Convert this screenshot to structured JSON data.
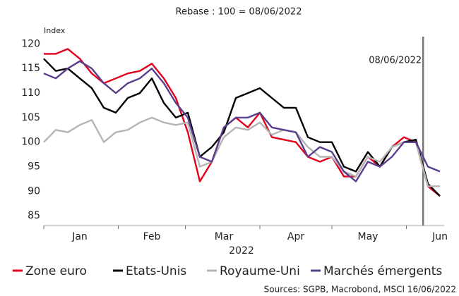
{
  "chart_data": {
    "type": "line",
    "subtitle": "Rebase : 100 = 08/06/2022",
    "y_axis_label": "Index",
    "x_axis_label": "2022",
    "annotation": "08/06/2022",
    "source": "Sources: SGPB, Macrobond, MSCI 16/06/2022",
    "categories": [
      null,
      null,
      null,
      "Jan",
      null,
      null,
      null,
      null,
      null,
      "Feb",
      null,
      null,
      null,
      null,
      null,
      "Mar",
      null,
      null,
      null,
      null,
      null,
      "Apr",
      null,
      null,
      null,
      null,
      null,
      "May",
      null,
      null,
      null,
      null,
      null,
      "Jun"
    ],
    "series": [
      {
        "name": "Zone euro",
        "color": "#e3001b",
        "values": [
          118,
          118,
          119,
          117,
          114,
          112,
          113,
          114,
          114.5,
          116,
          113,
          109,
          102,
          92,
          96,
          103,
          105,
          103,
          106,
          101,
          100.5,
          100,
          97,
          96,
          97,
          93,
          93,
          97,
          95,
          99,
          101,
          100,
          91,
          89
        ]
      },
      {
        "name": "Etats-Unis",
        "color": "#000000",
        "values": [
          117,
          114.5,
          115,
          113,
          111,
          107,
          106,
          109,
          110,
          113,
          108,
          105,
          106,
          97,
          99,
          102,
          109,
          110,
          111,
          109,
          107,
          107,
          101,
          100,
          100,
          95,
          94,
          98,
          95,
          99,
          100,
          100.5,
          91.5,
          89
        ]
      },
      {
        "name": "Royaume-Uni",
        "color": "#b5b5b5",
        "values": [
          100,
          102.5,
          102,
          103.5,
          104.5,
          100,
          102,
          102.5,
          104,
          105,
          104,
          103.5,
          104,
          95,
          96,
          101,
          103,
          102.5,
          104,
          101.5,
          102.5,
          102,
          99,
          97,
          97,
          94,
          93,
          97,
          96,
          99,
          100,
          100,
          91,
          91
        ]
      },
      {
        "name": "Marchés émergents",
        "color": "#5a3e8e",
        "values": [
          114,
          113,
          115,
          116.5,
          115,
          112,
          110,
          112,
          113,
          115,
          112,
          108,
          105,
          97,
          96,
          103,
          105,
          105,
          106,
          103,
          102.5,
          102,
          97,
          99,
          98,
          94,
          92,
          96,
          95,
          97,
          100,
          100,
          95,
          94
        ]
      }
    ],
    "ylim": [
      83,
      121.5
    ],
    "yticks": [
      85,
      90,
      95,
      100,
      105,
      110,
      115,
      120
    ],
    "grid": false
  }
}
